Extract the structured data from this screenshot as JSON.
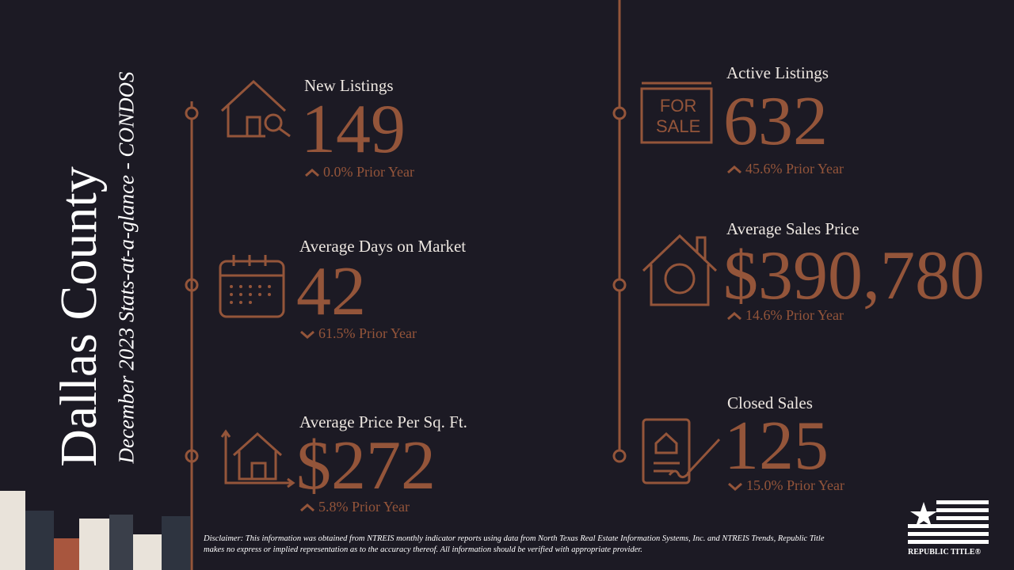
{
  "header": {
    "title": "Dallas County",
    "subtitle": "December 2023 Stats-at-a-glance - CONDOS"
  },
  "stats": [
    {
      "label": "New Listings",
      "value": "149",
      "change": "0.0% Prior Year",
      "trend": "up"
    },
    {
      "label": "Average Days on Market",
      "value": "42",
      "change": "61.5% Prior Year",
      "trend": "down"
    },
    {
      "label": "Average Price Per Sq. Ft.",
      "value": "$272",
      "change": "5.8% Prior Year",
      "trend": "up"
    },
    {
      "label": "Active Listings",
      "value": "632",
      "change": "45.6% Prior Year",
      "trend": "up"
    },
    {
      "label": "Average Sales Price",
      "value": "$390,780",
      "change": "14.6% Prior Year",
      "trend": "up"
    },
    {
      "label": "Closed Sales",
      "value": "125",
      "change": "15.0% Prior Year",
      "trend": "down"
    }
  ],
  "sign": [
    "FOR",
    "SALE"
  ],
  "disclaimer": "Disclaimer: This information was obtained from NTREIS monthly indicator reports using data from North Texas Real Estate Information Systems, Inc. and NTREIS Trends, Republic Title makes no express or implied representation as to the accuracy thereof. All information should be verified with appropriate provider.",
  "logo": "REPUBLIC TITLE®"
}
